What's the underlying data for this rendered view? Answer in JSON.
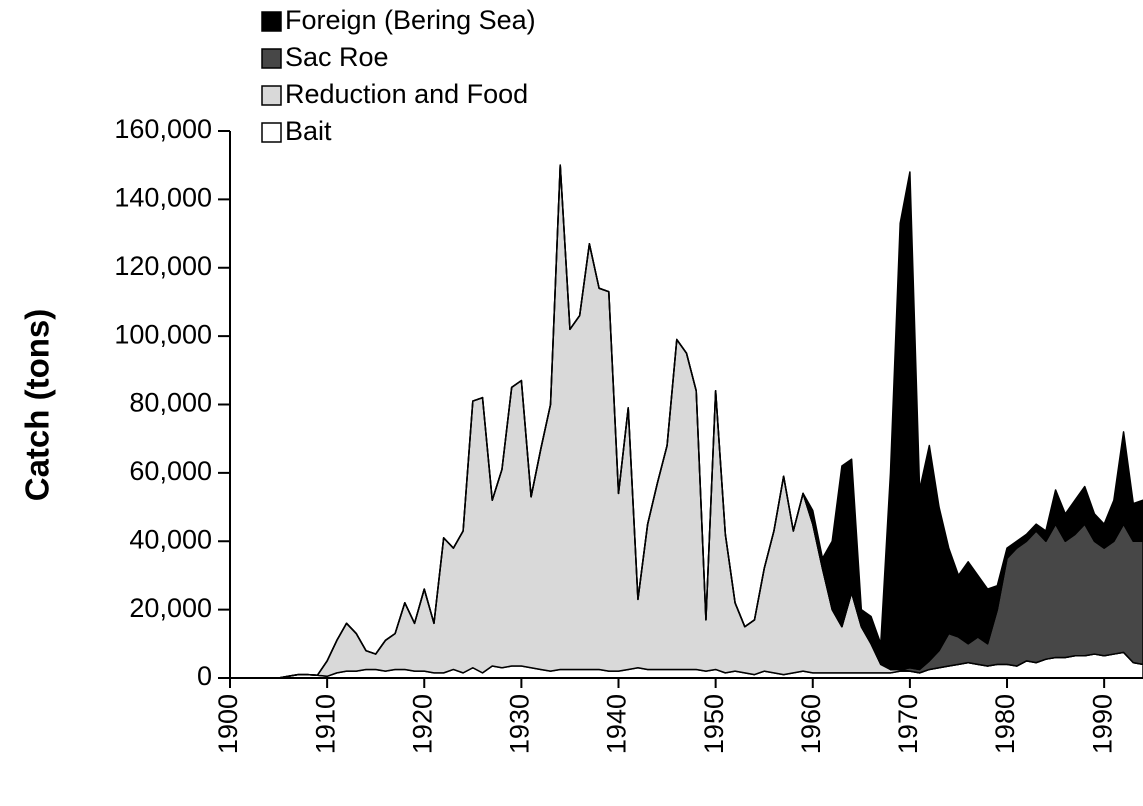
{
  "chart_data": {
    "type": "stacked_area",
    "ylabel": "Catch (tons)",
    "x": [
      1900,
      1901,
      1902,
      1903,
      1904,
      1905,
      1906,
      1907,
      1908,
      1909,
      1910,
      1911,
      1912,
      1913,
      1914,
      1915,
      1916,
      1917,
      1918,
      1919,
      1920,
      1921,
      1922,
      1923,
      1924,
      1925,
      1926,
      1927,
      1928,
      1929,
      1930,
      1931,
      1932,
      1933,
      1934,
      1935,
      1936,
      1937,
      1938,
      1939,
      1940,
      1941,
      1942,
      1943,
      1944,
      1945,
      1946,
      1947,
      1948,
      1949,
      1950,
      1951,
      1952,
      1953,
      1954,
      1955,
      1956,
      1957,
      1958,
      1959,
      1960,
      1961,
      1962,
      1963,
      1964,
      1965,
      1966,
      1967,
      1968,
      1969,
      1970,
      1971,
      1972,
      1973,
      1974,
      1975,
      1976,
      1977,
      1978,
      1979,
      1980,
      1981,
      1982,
      1983,
      1984,
      1985,
      1986,
      1987,
      1988,
      1989,
      1990,
      1991,
      1992,
      1993,
      1994
    ],
    "series": [
      {
        "name": "Bait",
        "color": "#ffffff",
        "values": [
          0,
          0,
          0,
          0,
          0,
          0,
          500,
          1000,
          1000,
          800,
          500,
          1500,
          2000,
          2000,
          2500,
          2500,
          2000,
          2500,
          2500,
          2000,
          2000,
          1500,
          1500,
          2500,
          1500,
          3000,
          1500,
          3500,
          3000,
          3500,
          3500,
          3000,
          2500,
          2000,
          2500,
          2500,
          2500,
          2500,
          2500,
          2000,
          2000,
          2500,
          3000,
          2500,
          2500,
          2500,
          2500,
          2500,
          2500,
          2000,
          2500,
          1500,
          2000,
          1500,
          1000,
          2000,
          1500,
          1000,
          1500,
          2000,
          1500,
          1500,
          1500,
          1500,
          1500,
          1500,
          1500,
          1500,
          1500,
          2000,
          2000,
          1500,
          2500,
          3000,
          3500,
          4000,
          4500,
          4000,
          3500,
          4000,
          4000,
          3500,
          5000,
          4500,
          5500,
          6000,
          6000,
          6500,
          6500,
          7000,
          6500,
          7000,
          7500,
          4500,
          4000
        ]
      },
      {
        "name": "Reduction and Food",
        "color": "#d9d9d9",
        "values": [
          0,
          0,
          0,
          0,
          0,
          0,
          0,
          0,
          0,
          0,
          4500,
          9500,
          14000,
          11000,
          5500,
          4500,
          9000,
          10500,
          19500,
          14000,
          24000,
          14500,
          39500,
          35500,
          41500,
          78000,
          80500,
          48500,
          58000,
          81500,
          83500,
          50000,
          64500,
          78000,
          147500,
          99500,
          103500,
          124500,
          111500,
          111000,
          52000,
          76500,
          20000,
          42500,
          54500,
          65500,
          96500,
          92500,
          81500,
          15000,
          81500,
          40500,
          20000,
          13500,
          16000,
          30000,
          41500,
          58000,
          41500,
          52000,
          43500,
          30500,
          18500,
          13500,
          23500,
          13500,
          8500,
          2500,
          1000,
          500,
          0,
          0,
          0,
          0,
          0,
          0,
          0,
          0,
          0,
          0,
          0,
          0,
          0,
          0,
          0,
          0,
          0,
          0,
          0,
          0,
          0,
          0,
          0,
          0,
          0
        ]
      },
      {
        "name": "Sac Roe",
        "color": "#474747",
        "values": [
          0,
          0,
          0,
          0,
          0,
          0,
          0,
          0,
          0,
          0,
          0,
          0,
          0,
          0,
          0,
          0,
          0,
          0,
          0,
          0,
          0,
          0,
          0,
          0,
          0,
          0,
          0,
          0,
          0,
          0,
          0,
          0,
          0,
          0,
          0,
          0,
          0,
          0,
          0,
          0,
          0,
          0,
          0,
          0,
          0,
          0,
          0,
          0,
          0,
          0,
          0,
          0,
          0,
          0,
          0,
          0,
          0,
          0,
          0,
          0,
          0,
          0,
          0,
          0,
          0,
          0,
          0,
          0,
          0,
          0,
          1000,
          1000,
          2500,
          5000,
          9500,
          8000,
          5500,
          8000,
          6500,
          16000,
          31000,
          34500,
          35000,
          38500,
          34500,
          39000,
          34000,
          35500,
          38500,
          33000,
          31500,
          33000,
          37500,
          35500,
          36000
        ]
      },
      {
        "name": "Foreign (Bering Sea)",
        "color": "#000000",
        "values": [
          0,
          0,
          0,
          0,
          0,
          0,
          0,
          0,
          0,
          0,
          0,
          0,
          0,
          0,
          0,
          0,
          0,
          0,
          0,
          0,
          0,
          0,
          0,
          0,
          0,
          0,
          0,
          0,
          0,
          0,
          0,
          0,
          0,
          0,
          0,
          0,
          0,
          0,
          0,
          0,
          0,
          0,
          0,
          0,
          0,
          0,
          0,
          0,
          0,
          0,
          0,
          0,
          0,
          0,
          0,
          0,
          0,
          0,
          0,
          0,
          4000,
          3000,
          20000,
          47000,
          39000,
          5000,
          8000,
          6000,
          57500,
          130500,
          145000,
          52500,
          63000,
          42000,
          25000,
          18000,
          24000,
          18000,
          16000,
          7000,
          3000,
          2000,
          2000,
          2000,
          3000,
          10000,
          8000,
          10000,
          11000,
          8000,
          7000,
          12000,
          27000,
          11000,
          12000
        ]
      }
    ],
    "xlim": [
      1900,
      1994
    ],
    "xticks": [
      1900,
      1910,
      1920,
      1930,
      1940,
      1950,
      1960,
      1970,
      1980,
      1990
    ],
    "ylim": [
      0,
      160000
    ],
    "yticks": [
      0,
      {
        "value": 20000,
        "label": "20,000"
      },
      {
        "value": 40000,
        "label": "40,000"
      },
      {
        "value": 60000,
        "label": "60,000"
      },
      {
        "value": 80000,
        "label": "80,000"
      },
      {
        "value": 100000,
        "label": "100,000"
      },
      {
        "value": 120000,
        "label": "120,000"
      },
      {
        "value": 140000,
        "label": "140,000"
      },
      {
        "value": 160000,
        "label": "160,000"
      }
    ],
    "legend": "top-left"
  }
}
